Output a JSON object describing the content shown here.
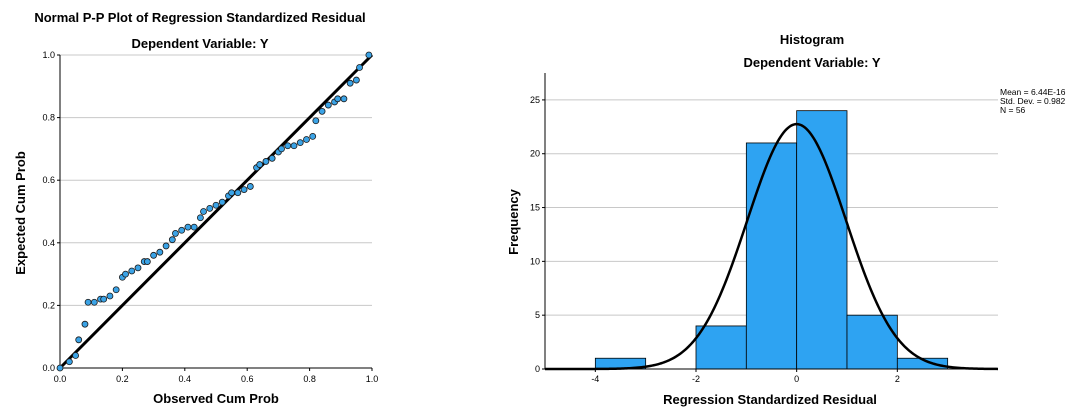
{
  "chart_data": [
    {
      "type": "scatter",
      "title": "Normal P-P Plot of Regression Standardized Residual",
      "subtitle": "Dependent Variable: Y",
      "xlabel": "Observed Cum Prob",
      "ylabel": "Expected Cum Prob",
      "xlim": [
        0,
        1
      ],
      "ylim": [
        0,
        1
      ],
      "x_ticks": [
        "0.0",
        "0.2",
        "0.4",
        "0.6",
        "0.8",
        "1.0"
      ],
      "y_ticks": [
        "0.0",
        "0.2",
        "0.4",
        "0.6",
        "0.8",
        "1.0"
      ],
      "grid": true,
      "reference_line": [
        [
          0,
          0
        ],
        [
          1,
          1
        ]
      ],
      "point_color": "#3ba3e6",
      "points": [
        [
          0.0,
          0.0
        ],
        [
          0.03,
          0.02
        ],
        [
          0.05,
          0.04
        ],
        [
          0.06,
          0.09
        ],
        [
          0.08,
          0.14
        ],
        [
          0.09,
          0.21
        ],
        [
          0.11,
          0.21
        ],
        [
          0.13,
          0.22
        ],
        [
          0.14,
          0.22
        ],
        [
          0.16,
          0.23
        ],
        [
          0.18,
          0.25
        ],
        [
          0.2,
          0.29
        ],
        [
          0.21,
          0.3
        ],
        [
          0.23,
          0.31
        ],
        [
          0.25,
          0.32
        ],
        [
          0.27,
          0.34
        ],
        [
          0.28,
          0.34
        ],
        [
          0.3,
          0.36
        ],
        [
          0.32,
          0.37
        ],
        [
          0.34,
          0.39
        ],
        [
          0.36,
          0.41
        ],
        [
          0.37,
          0.43
        ],
        [
          0.39,
          0.44
        ],
        [
          0.41,
          0.45
        ],
        [
          0.43,
          0.45
        ],
        [
          0.45,
          0.48
        ],
        [
          0.46,
          0.5
        ],
        [
          0.48,
          0.51
        ],
        [
          0.5,
          0.52
        ],
        [
          0.52,
          0.53
        ],
        [
          0.54,
          0.55
        ],
        [
          0.55,
          0.56
        ],
        [
          0.57,
          0.56
        ],
        [
          0.59,
          0.57
        ],
        [
          0.61,
          0.58
        ],
        [
          0.63,
          0.64
        ],
        [
          0.64,
          0.65
        ],
        [
          0.66,
          0.66
        ],
        [
          0.68,
          0.67
        ],
        [
          0.7,
          0.69
        ],
        [
          0.71,
          0.7
        ],
        [
          0.73,
          0.71
        ],
        [
          0.75,
          0.71
        ],
        [
          0.77,
          0.72
        ],
        [
          0.79,
          0.73
        ],
        [
          0.81,
          0.74
        ],
        [
          0.82,
          0.79
        ],
        [
          0.84,
          0.82
        ],
        [
          0.86,
          0.84
        ],
        [
          0.88,
          0.85
        ],
        [
          0.89,
          0.86
        ],
        [
          0.91,
          0.86
        ],
        [
          0.93,
          0.91
        ],
        [
          0.95,
          0.92
        ],
        [
          0.96,
          0.96
        ],
        [
          0.99,
          1.0
        ]
      ]
    },
    {
      "type": "bar",
      "title": "Histogram",
      "subtitle": "Dependent Variable: Y",
      "xlabel": "Regression Standardized Residual",
      "ylabel": "Frequency",
      "xlim": [
        -5,
        4
      ],
      "ylim": [
        0,
        27.5
      ],
      "x_ticks": [
        "-4",
        "-2",
        "0",
        "2"
      ],
      "y_ticks": [
        "0",
        "5",
        "10",
        "15",
        "20",
        "25"
      ],
      "grid": true,
      "bar_color": "#2ea3f2",
      "bins": [
        {
          "from": -4,
          "to": -3,
          "count": 1
        },
        {
          "from": -3,
          "to": -2,
          "count": 0
        },
        {
          "from": -2,
          "to": -1,
          "count": 4
        },
        {
          "from": -1,
          "to": 0,
          "count": 21
        },
        {
          "from": 0,
          "to": 1,
          "count": 24
        },
        {
          "from": 1,
          "to": 2,
          "count": 5
        },
        {
          "from": 2,
          "to": 3,
          "count": 1
        }
      ],
      "normal_curve": {
        "mean": 0,
        "sd": 0.982,
        "n": 56,
        "bin_width": 1
      },
      "stats": [
        "Mean = 6.44E-16",
        "Std. Dev. = 0.982",
        "N = 56"
      ]
    }
  ]
}
